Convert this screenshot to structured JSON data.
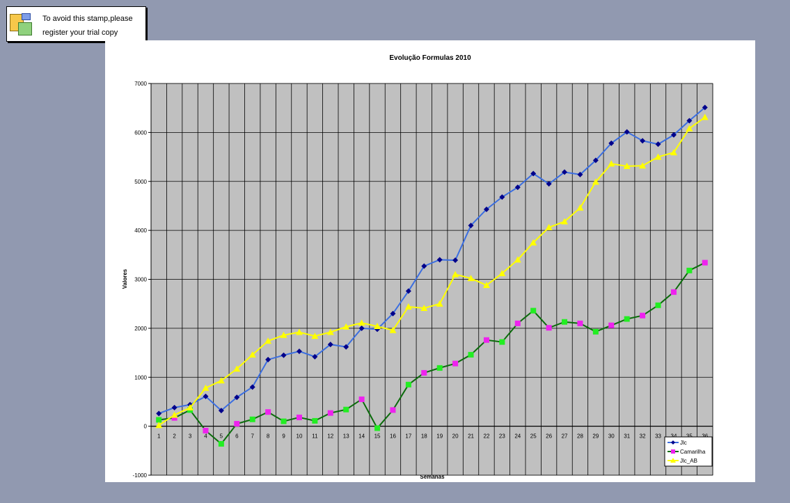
{
  "stamp": {
    "line1": "To avoid this stamp,please",
    "line2": "register your trial copy"
  },
  "colors": {
    "background": "#9199b0",
    "plot_area": "#c0c0c0",
    "jlc": "#3b6ee0",
    "jlc_marker": "#00008b",
    "camarilha": "#0b6b0b",
    "camarilha_marker_a": "#ee22ee",
    "camarilha_marker_b": "#22ee22",
    "jlc_ab": "#ffff00"
  },
  "chart_data": {
    "type": "line",
    "title": "Evolução Formulas 2010",
    "xlabel": "Semanas",
    "ylabel": "Valores",
    "ylim": [
      -1000,
      7000
    ],
    "yticks": [
      -1000,
      0,
      1000,
      2000,
      3000,
      4000,
      5000,
      6000,
      7000
    ],
    "grid": true,
    "legend": "bottom-right, inside plot",
    "categories": [
      "1",
      "2",
      "3",
      "4",
      "5",
      "6",
      "7",
      "8",
      "9",
      "10",
      "11",
      "12",
      "13",
      "14",
      "15",
      "16",
      "17",
      "18",
      "19",
      "20",
      "21",
      "22",
      "23",
      "24",
      "25",
      "26",
      "27",
      "28",
      "29",
      "30",
      "31",
      "32",
      "33",
      "34",
      "35",
      "36"
    ],
    "series": [
      {
        "name": "Jlc",
        "marker": "diamond",
        "values": [
          260,
          380,
          440,
          610,
          320,
          590,
          800,
          1360,
          1450,
          1530,
          1420,
          1670,
          1620,
          2000,
          1980,
          2300,
          2760,
          3270,
          3400,
          3390,
          4100,
          4430,
          4680,
          4880,
          5160,
          4950,
          5190,
          5140,
          5430,
          5780,
          6010,
          5830,
          5760,
          5950,
          6240,
          6510
        ]
      },
      {
        "name": "Camarilha",
        "marker": "square",
        "values": [
          130,
          170,
          330,
          -90,
          -360,
          50,
          140,
          290,
          100,
          180,
          110,
          270,
          340,
          550,
          -40,
          330,
          850,
          1090,
          1190,
          1280,
          1460,
          1760,
          1720,
          2100,
          2360,
          2010,
          2130,
          2100,
          1930,
          2060,
          2190,
          2260,
          2470,
          2740,
          3180,
          3340
        ]
      },
      {
        "name": "Jlc_AB",
        "marker": "triangle",
        "values": [
          20,
          230,
          380,
          780,
          930,
          1170,
          1460,
          1740,
          1860,
          1920,
          1840,
          1920,
          2030,
          2110,
          2040,
          1960,
          2440,
          2410,
          2500,
          3100,
          3020,
          2880,
          3120,
          3400,
          3750,
          4060,
          4180,
          4460,
          4990,
          5360,
          5310,
          5320,
          5500,
          5590,
          6080,
          6310
        ]
      }
    ]
  }
}
